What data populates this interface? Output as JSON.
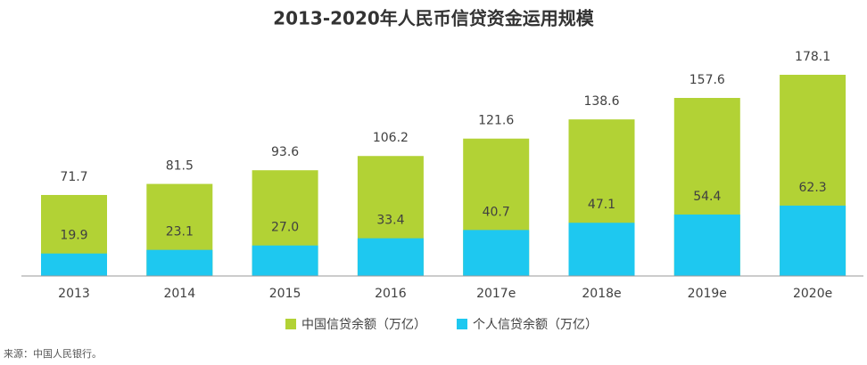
{
  "chart_data": {
    "type": "bar",
    "title": "2013-2020年人民币信贷资金运用规模",
    "categories": [
      "2013",
      "2014",
      "2015",
      "2016",
      "2017e",
      "2018e",
      "2019e",
      "2020e"
    ],
    "series": [
      {
        "name": "中国信贷余额（万亿）",
        "color": "#b2d235",
        "values": [
          71.7,
          81.5,
          93.6,
          106.2,
          121.6,
          138.6,
          157.6,
          178.1
        ]
      },
      {
        "name": "个人信贷余额（万亿）",
        "color": "#1ec8f0",
        "values": [
          19.9,
          23.1,
          27.0,
          33.4,
          40.7,
          47.1,
          54.4,
          62.3
        ],
        "value_labels": [
          "19.9",
          "23.1",
          "27.0",
          "33.4",
          "40.7",
          "47.1",
          "54.4",
          "62.3"
        ]
      }
    ],
    "source": "来源：中国人民银行。"
  }
}
